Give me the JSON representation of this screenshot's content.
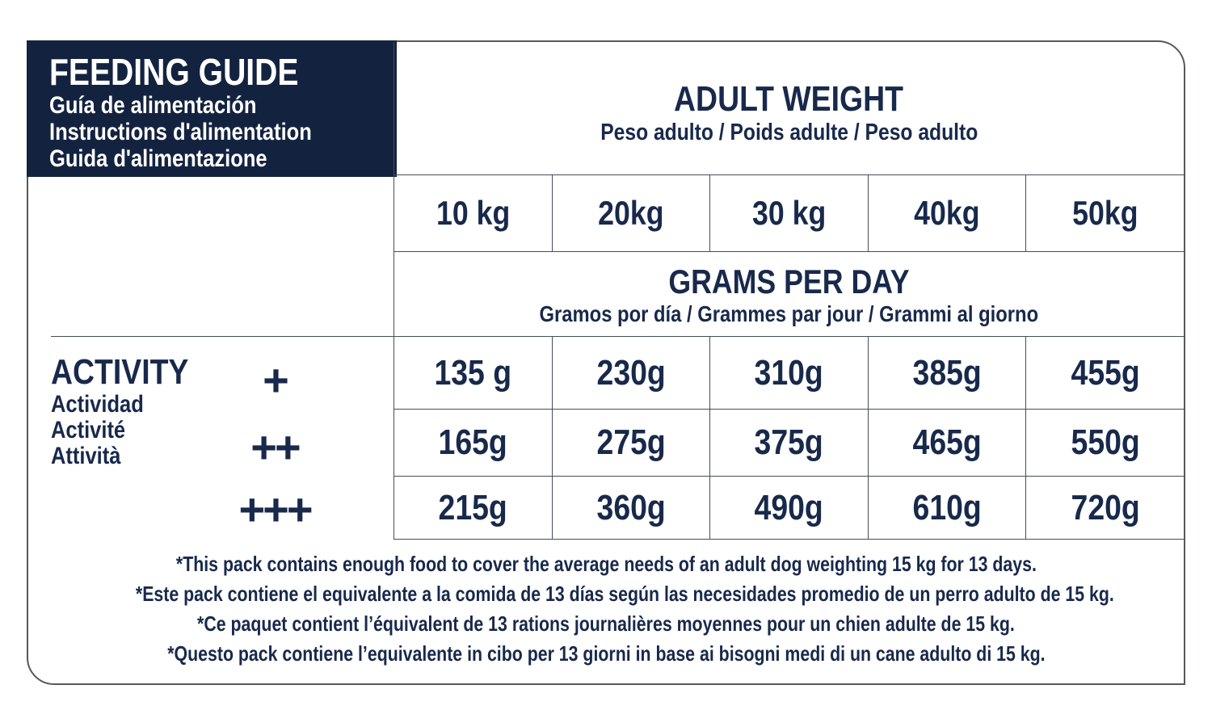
{
  "colors": {
    "navy": "#13233f",
    "ink": "#18294b",
    "grid": "#474c55"
  },
  "header": {
    "title": "FEEDING GUIDE",
    "subtitles": [
      "Guía de alimentación",
      "Instructions d'alimentation",
      "Guida d'alimentazione"
    ]
  },
  "adult_weight": {
    "title": "ADULT WEIGHT",
    "subtitle": "Peso adulto / Poids adulte / Peso adulto"
  },
  "weights": [
    "10 kg",
    "20kg",
    "30 kg",
    "40kg",
    "50kg"
  ],
  "grams_per_day": {
    "title": "GRAMS PER DAY",
    "subtitle": "Gramos por día / Grammes par jour / Grammi al giorno"
  },
  "activity": {
    "title": "ACTIVITY",
    "subtitles": [
      "Actividad",
      "Activité",
      "Attività"
    ],
    "levels": [
      "+",
      "++",
      "+++"
    ]
  },
  "table": {
    "rows": [
      {
        "level": "+",
        "values": [
          "135 g",
          "230g",
          "310g",
          "385g",
          "455g"
        ]
      },
      {
        "level": "++",
        "values": [
          "165g",
          "275g",
          "375g",
          "465g",
          "550g"
        ]
      },
      {
        "level": "+++",
        "values": [
          "215g",
          "360g",
          "490g",
          "610g",
          "720g"
        ]
      }
    ]
  },
  "footnotes": [
    "*This pack contains enough food to cover the average needs of an adult dog weighting 15 kg for 13 days.",
    "*Este pack contiene el equivalente a la comida de 13 días según las necesidades promedio de un perro adulto de 15 kg.",
    "*Ce paquet contient l’équivalent de 13 rations journalières moyennes pour un chien adulte de 15 kg.",
    "*Questo pack contiene l’equivalente in cibo per 13 giorni in base ai bisogni medi di un cane adulto di 15 kg."
  ]
}
